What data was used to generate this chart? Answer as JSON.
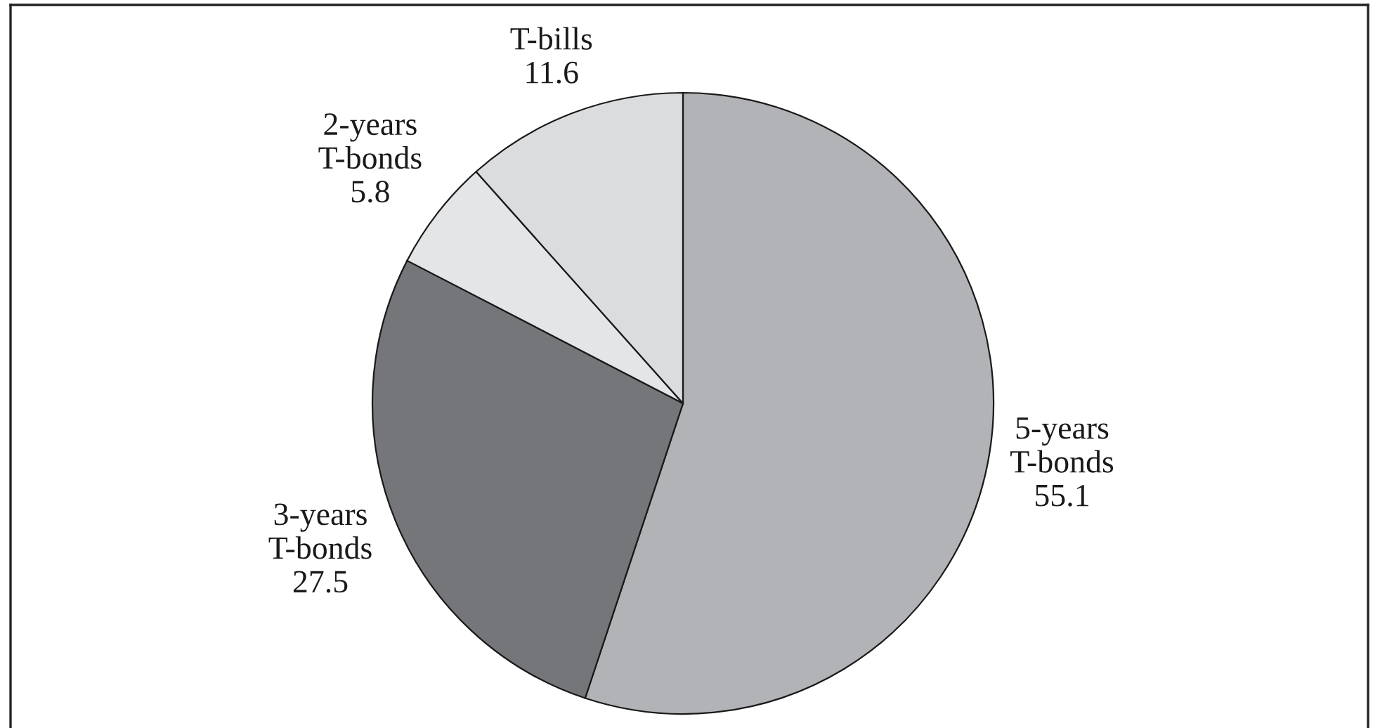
{
  "chart_data": {
    "type": "pie",
    "categories": [
      "5-years\nT-bonds",
      "3-years\nT-bonds",
      "2-years\nT-bonds",
      "T-bills"
    ],
    "values": [
      55.1,
      27.5,
      5.8,
      11.6
    ],
    "colors": [
      "#b2b3b6",
      "#75767a",
      "#e4e5e6",
      "#dbdcde"
    ],
    "data_labels": true
  }
}
